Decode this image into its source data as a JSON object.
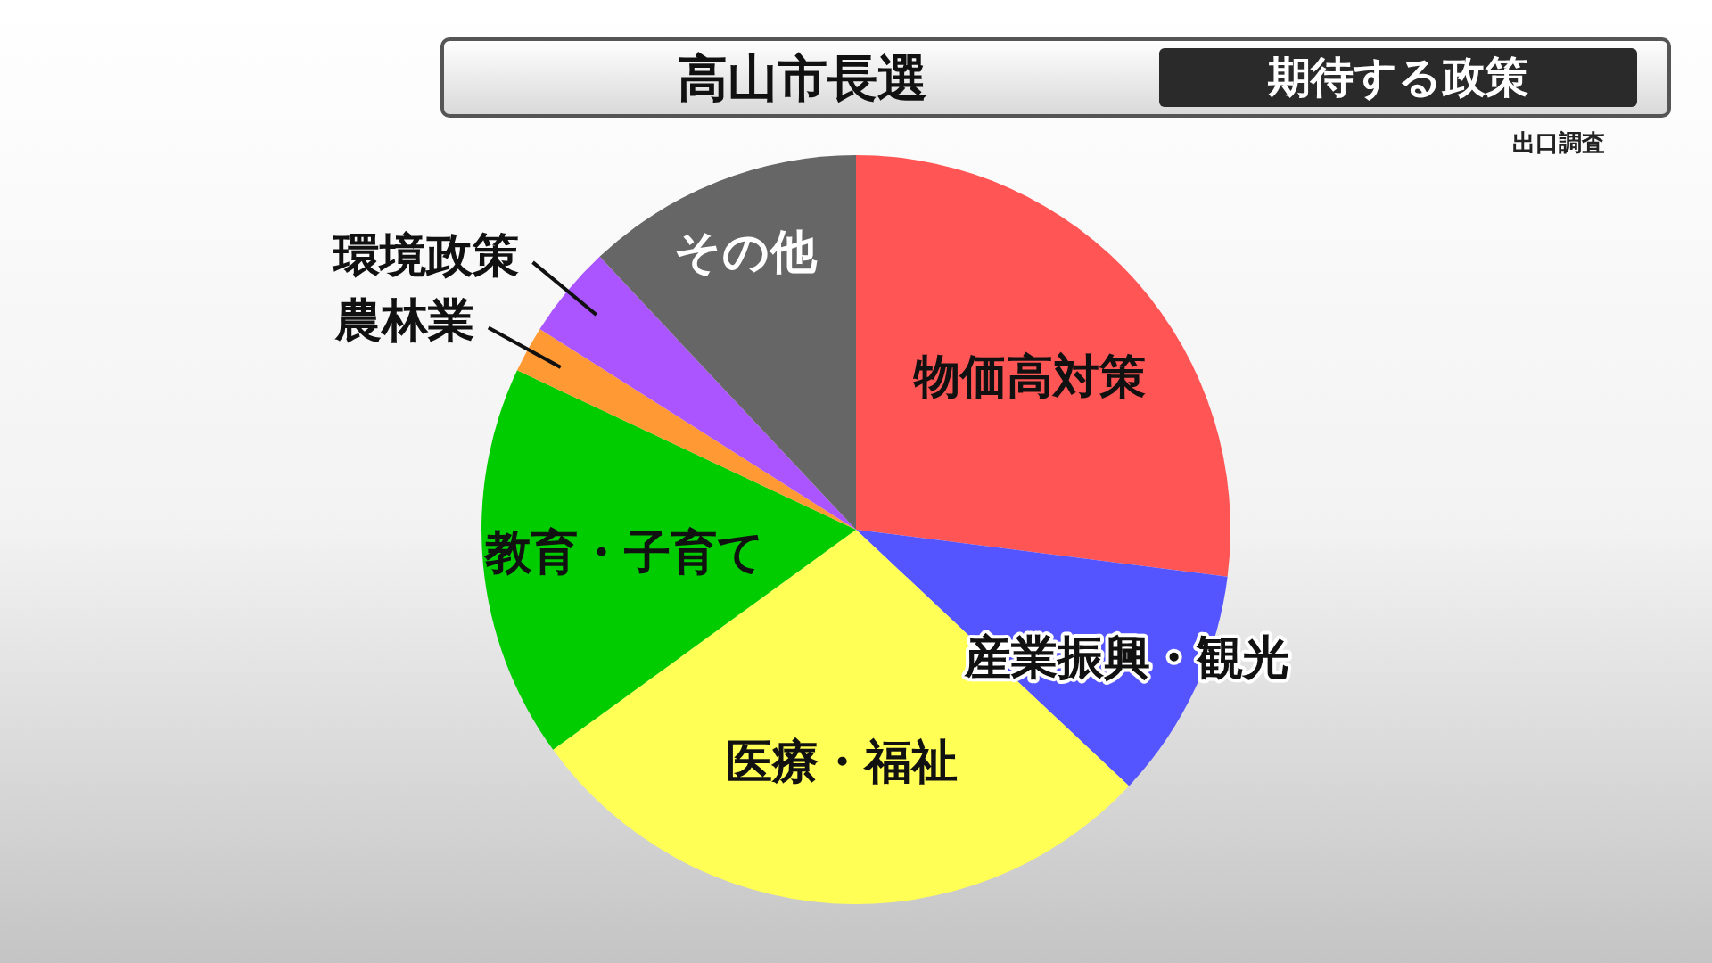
{
  "chart_data": {
    "type": "pie",
    "title": "高山市長選",
    "subtitle": "期待する政策",
    "annotations": [
      "出口調査"
    ],
    "categories": [
      "物価高対策",
      "産業振興・観光",
      "医療・福祉",
      "教育・子育て",
      "農林業",
      "環境政策",
      "その他"
    ],
    "values": [
      27,
      10,
      28,
      17,
      2,
      4,
      12
    ],
    "colors": [
      "#ff5555",
      "#5555ff",
      "#ffff55",
      "#00cc00",
      "#ff9933",
      "#aa55ff",
      "#666666"
    ]
  }
}
